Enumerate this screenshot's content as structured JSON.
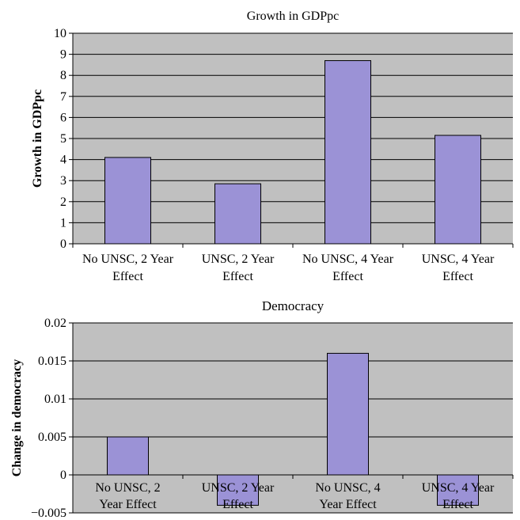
{
  "colors": {
    "plot_bg": "#c0c0c0",
    "bar_fill": "#9b92d6",
    "bar_stroke": "#000000",
    "grid": "#000000"
  },
  "chart_data": [
    {
      "type": "bar",
      "title": "Growth in GDPpc",
      "xlabel": "",
      "ylabel": "Growth in GDPpc",
      "categories": [
        [
          "No UNSC, 2 Year",
          "Effect"
        ],
        [
          "UNSC, 2 Year",
          "Effect"
        ],
        [
          "No UNSC, 4 Year",
          "Effect"
        ],
        [
          "UNSC, 4 Year",
          "Effect"
        ]
      ],
      "values": [
        4.1,
        2.85,
        8.7,
        5.15
      ],
      "ylim": [
        0,
        10
      ],
      "yticks": [
        0,
        1,
        2,
        3,
        4,
        5,
        6,
        7,
        8,
        9,
        10
      ],
      "ytick_labels": [
        "0",
        "1",
        "2",
        "3",
        "4",
        "5",
        "6",
        "7",
        "8",
        "9",
        "10"
      ],
      "grid": true,
      "legend": "none"
    },
    {
      "type": "bar",
      "title": "Democracy",
      "xlabel": "",
      "ylabel": "Change in democracy",
      "categories": [
        [
          "No UNSC, 2",
          "Year Effect"
        ],
        [
          "UNSC, 2 Year",
          "Effect"
        ],
        [
          "No UNSC, 4",
          "Year Effect"
        ],
        [
          "UNSC, 4 Year",
          "Effect"
        ]
      ],
      "values": [
        0.005,
        -0.004,
        0.016,
        -0.004
      ],
      "ylim": [
        -0.005,
        0.02
      ],
      "yticks": [
        -0.005,
        0,
        0.005,
        0.01,
        0.015,
        0.02
      ],
      "ytick_labels": [
        "−0.005",
        "0",
        "0.005",
        "0.01",
        "0.015",
        "0.02"
      ],
      "grid": true,
      "legend": "none"
    }
  ]
}
